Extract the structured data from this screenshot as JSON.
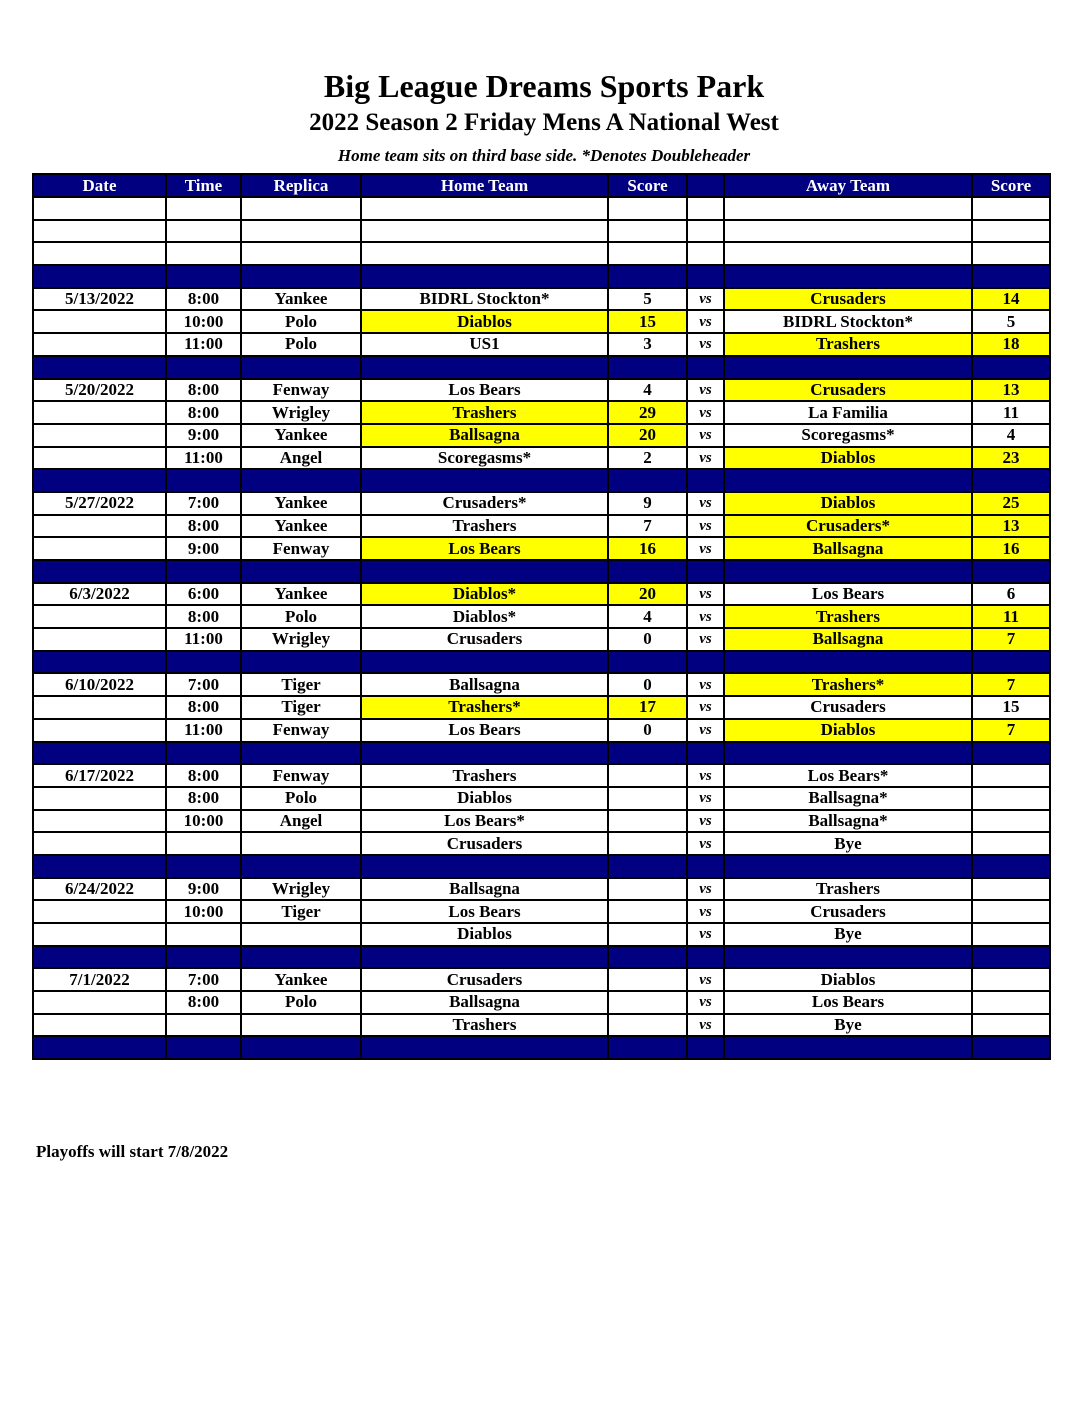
{
  "title": "Big League Dreams Sports Park",
  "subtitle": "2022 Season 2 Friday Mens A National West",
  "note": "Home team sits on third base side.  *Denotes Doubleheader",
  "colors": {
    "header": "#000080",
    "winner_highlight": "#ffff00"
  },
  "columns": [
    "Date",
    "Time",
    "Replica",
    "Home Team",
    "Score",
    "",
    "Away Team",
    "Score"
  ],
  "rows": [
    {
      "type": "empty"
    },
    {
      "type": "empty"
    },
    {
      "type": "empty"
    },
    {
      "type": "sep"
    },
    {
      "date": "5/13/2022",
      "time": "8:00",
      "replica": "Yankee",
      "home": "BIDRL Stockton*",
      "home_score": "5",
      "vs": "vs",
      "away": "Crusaders",
      "away_score": "14",
      "winner": "away"
    },
    {
      "date": "",
      "time": "10:00",
      "replica": "Polo",
      "home": "Diablos",
      "home_score": "15",
      "vs": "vs",
      "away": "BIDRL Stockton*",
      "away_score": "5",
      "winner": "home"
    },
    {
      "date": "",
      "time": "11:00",
      "replica": "Polo",
      "home": "US1",
      "home_score": "3",
      "vs": "vs",
      "away": "Trashers",
      "away_score": "18",
      "winner": "away"
    },
    {
      "type": "sep"
    },
    {
      "date": "5/20/2022",
      "time": "8:00",
      "replica": "Fenway",
      "home": "Los Bears",
      "home_score": "4",
      "vs": "vs",
      "away": "Crusaders",
      "away_score": "13",
      "winner": "away"
    },
    {
      "date": "",
      "time": "8:00",
      "replica": "Wrigley",
      "home": "Trashers",
      "home_score": "29",
      "vs": "vs",
      "away": "La Familia",
      "away_score": "11",
      "winner": "home"
    },
    {
      "date": "",
      "time": "9:00",
      "replica": "Yankee",
      "home": "Ballsagna",
      "home_score": "20",
      "vs": "vs",
      "away": "Scoregasms*",
      "away_score": "4",
      "winner": "home"
    },
    {
      "date": "",
      "time": "11:00",
      "replica": "Angel",
      "home": "Scoregasms*",
      "home_score": "2",
      "vs": "vs",
      "away": "Diablos",
      "away_score": "23",
      "winner": "away"
    },
    {
      "type": "sep"
    },
    {
      "date": "5/27/2022",
      "time": "7:00",
      "replica": "Yankee",
      "home": "Crusaders*",
      "home_score": "9",
      "vs": "vs",
      "away": "Diablos",
      "away_score": "25",
      "winner": "away"
    },
    {
      "date": "",
      "time": "8:00",
      "replica": "Yankee",
      "home": "Trashers",
      "home_score": "7",
      "vs": "vs",
      "away": "Crusaders*",
      "away_score": "13",
      "winner": "away"
    },
    {
      "date": "",
      "time": "9:00",
      "replica": "Fenway",
      "home": "Los Bears",
      "home_score": "16",
      "vs": "vs",
      "away": "Ballsagna",
      "away_score": "16",
      "winner": "both"
    },
    {
      "type": "sep"
    },
    {
      "date": "6/3/2022",
      "time": "6:00",
      "replica": "Yankee",
      "home": "Diablos*",
      "home_score": "20",
      "vs": "vs",
      "away": "Los Bears",
      "away_score": "6",
      "winner": "home"
    },
    {
      "date": "",
      "time": "8:00",
      "replica": "Polo",
      "home": "Diablos*",
      "home_score": "4",
      "vs": "vs",
      "away": "Trashers",
      "away_score": "11",
      "winner": "away"
    },
    {
      "date": "",
      "time": "11:00",
      "replica": "Wrigley",
      "home": "Crusaders",
      "home_score": "0",
      "vs": "vs",
      "away": "Ballsagna",
      "away_score": "7",
      "winner": "away"
    },
    {
      "type": "sep"
    },
    {
      "date": "6/10/2022",
      "time": "7:00",
      "replica": "Tiger",
      "home": "Ballsagna",
      "home_score": "0",
      "vs": "vs",
      "away": "Trashers*",
      "away_score": "7",
      "winner": "away"
    },
    {
      "date": "",
      "time": "8:00",
      "replica": "Tiger",
      "home": "Trashers*",
      "home_score": "17",
      "vs": "vs",
      "away": "Crusaders",
      "away_score": "15",
      "winner": "home"
    },
    {
      "date": "",
      "time": "11:00",
      "replica": "Fenway",
      "home": "Los Bears",
      "home_score": "0",
      "vs": "vs",
      "away": "Diablos",
      "away_score": "7",
      "winner": "away"
    },
    {
      "type": "sep"
    },
    {
      "date": "6/17/2022",
      "time": "8:00",
      "replica": "Fenway",
      "home": "Trashers",
      "home_score": "",
      "vs": "vs",
      "away": "Los Bears*",
      "away_score": ""
    },
    {
      "date": "",
      "time": "8:00",
      "replica": "Polo",
      "home": "Diablos",
      "home_score": "",
      "vs": "vs",
      "away": "Ballsagna*",
      "away_score": ""
    },
    {
      "date": "",
      "time": "10:00",
      "replica": "Angel",
      "home": "Los Bears*",
      "home_score": "",
      "vs": "vs",
      "away": "Ballsagna*",
      "away_score": ""
    },
    {
      "date": "",
      "time": "",
      "replica": "",
      "home": "Crusaders",
      "home_score": "",
      "vs": "vs",
      "away": "Bye",
      "away_score": ""
    },
    {
      "type": "sep"
    },
    {
      "date": "6/24/2022",
      "time": "9:00",
      "replica": "Wrigley",
      "home": "Ballsagna",
      "home_score": "",
      "vs": "vs",
      "away": "Trashers",
      "away_score": ""
    },
    {
      "date": "",
      "time": "10:00",
      "replica": "Tiger",
      "home": "Los Bears",
      "home_score": "",
      "vs": "vs",
      "away": "Crusaders",
      "away_score": ""
    },
    {
      "date": "",
      "time": "",
      "replica": "",
      "home": "Diablos",
      "home_score": "",
      "vs": "vs",
      "away": "Bye",
      "away_score": ""
    },
    {
      "type": "sep"
    },
    {
      "date": "7/1/2022",
      "time": "7:00",
      "replica": "Yankee",
      "home": "Crusaders",
      "home_score": "",
      "vs": "vs",
      "away": "Diablos",
      "away_score": ""
    },
    {
      "date": "",
      "time": "8:00",
      "replica": "Polo",
      "home": "Ballsagna",
      "home_score": "",
      "vs": "vs",
      "away": "Los Bears",
      "away_score": ""
    },
    {
      "date": "",
      "time": "",
      "replica": "",
      "home": "Trashers",
      "home_score": "",
      "vs": "vs",
      "away": "Bye",
      "away_score": ""
    },
    {
      "type": "sep"
    }
  ],
  "footer": "Playoffs will start 7/8/2022"
}
